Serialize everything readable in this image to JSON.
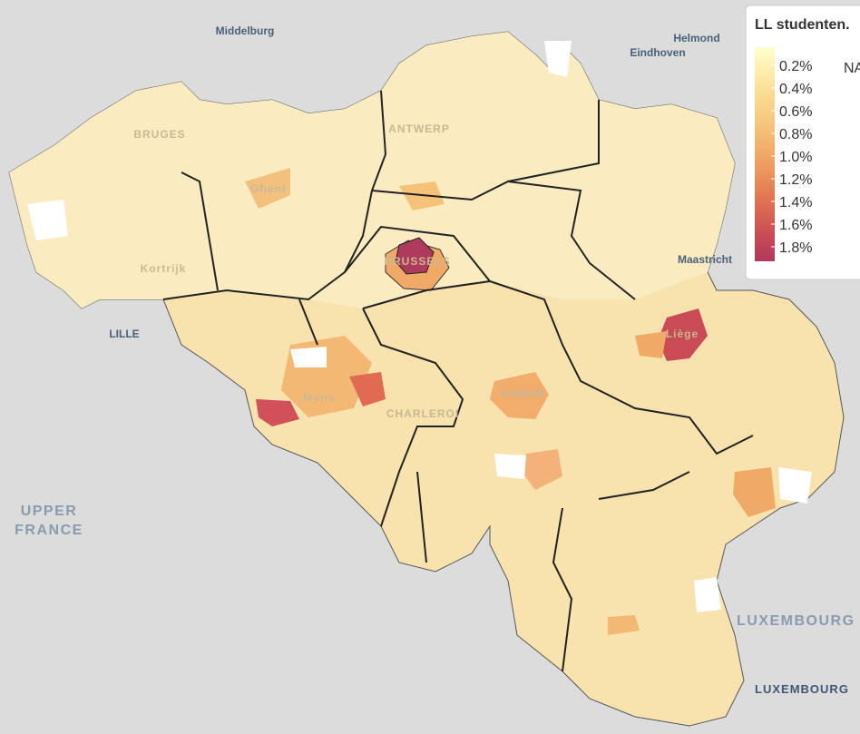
{
  "map": {
    "places": {
      "middelburg": "Middelburg",
      "helmond": "Helmond",
      "eindhoven": "Eindhoven",
      "bruges": "BRUGES",
      "antwerp": "ANTWERP",
      "ghent": "Ghent",
      "kortrijk": "Kortrijk",
      "brussels": "BRUSSELS",
      "maastricht": "Maastricht",
      "lille": "LILLE",
      "mons": "Mons",
      "charleroi": "CHARLEROI",
      "namur": "NAMUR",
      "liege": "Liège",
      "upper_france_1": "UPPER",
      "upper_france_2": "FRANCE",
      "luxembourg_region": "LUXEMBOURG",
      "luxembourg_city": "LUXEMBOURG"
    },
    "legend": {
      "title": "LL studenten.",
      "labels": [
        "0.2%",
        "0.4%",
        "0.6%",
        "0.8%",
        "1.0%",
        "1.2%",
        "1.4%",
        "1.6%",
        "1.8%"
      ],
      "colors": [
        "#ffffcc",
        "#fcebaa",
        "#f9d78d",
        "#f5c27a",
        "#f1a967",
        "#e88a58",
        "#dc6a52",
        "#c94b55",
        "#b03a5b"
      ],
      "na_label": "NA",
      "na_color": "#ffffff"
    }
  }
}
